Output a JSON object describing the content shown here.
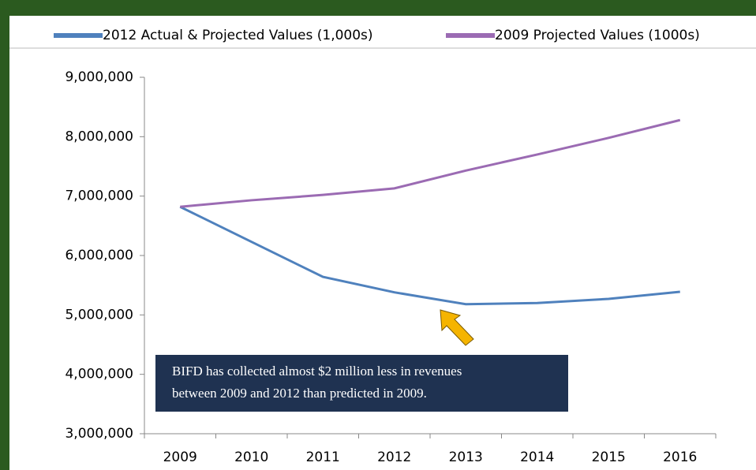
{
  "chart_data": {
    "type": "line",
    "categories": [
      "2009",
      "2010",
      "2011",
      "2012",
      "2013",
      "2014",
      "2015",
      "2016"
    ],
    "series": [
      {
        "name": "2012 Actual & Projected Values (1,000s)",
        "color": "#4f81bd",
        "values": [
          6820000,
          6230000,
          5640000,
          5380000,
          5180000,
          5200000,
          5270000,
          5390000
        ]
      },
      {
        "name": "2009 Projected Values (1000s)",
        "color": "#9b6bb3",
        "values": [
          6820000,
          6930000,
          7020000,
          7130000,
          7430000,
          7700000,
          7980000,
          8280000
        ]
      }
    ],
    "ylim": [
      3000000,
      9000000
    ],
    "yticks": [
      {
        "value": 3000000,
        "label": "3,000,000"
      },
      {
        "value": 4000000,
        "label": "4,000,000"
      },
      {
        "value": 5000000,
        "label": "5,000,000"
      },
      {
        "value": 6000000,
        "label": "6,000,000"
      },
      {
        "value": 7000000,
        "label": "7,000,000"
      },
      {
        "value": 8000000,
        "label": "8,000,000"
      },
      {
        "value": 9000000,
        "label": "9,000,000"
      }
    ],
    "annotation": [
      "BIFD has collected almost $2 million less in revenues",
      "between 2009 and 2012 than predicted in 2009."
    ]
  }
}
